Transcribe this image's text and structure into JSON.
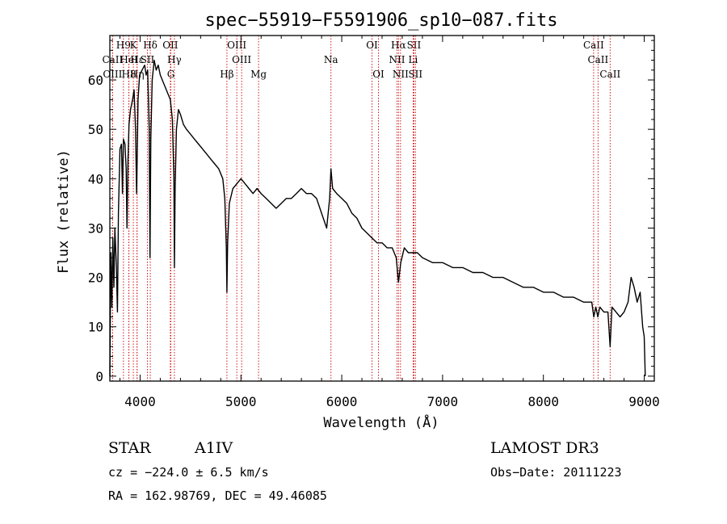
{
  "chart_data": {
    "type": "line",
    "title": "spec−55919−F5591906_sp10−087.fits",
    "xlabel": "Wavelength (Å)",
    "ylabel": "Flux (relative)",
    "xlim": [
      3700,
      9100
    ],
    "ylim": [
      -1,
      69
    ],
    "x_ticks": [
      4000,
      5000,
      6000,
      7000,
      8000,
      9000
    ],
    "x_tick_labels": [
      "4000",
      "5000",
      "6000",
      "7000",
      "8000",
      "9000"
    ],
    "y_ticks": [
      0,
      10,
      20,
      30,
      40,
      50,
      60
    ],
    "y_tick_labels": [
      "0",
      "10",
      "20",
      "30",
      "40",
      "50",
      "60"
    ],
    "line_color": "#000000",
    "marker_color": "#cc0000",
    "series": [
      {
        "name": "flux",
        "points": [
          [
            3700,
            0
          ],
          [
            3710,
            25
          ],
          [
            3720,
            14
          ],
          [
            3730,
            28
          ],
          [
            3740,
            18
          ],
          [
            3750,
            30
          ],
          [
            3765,
            22
          ],
          [
            3775,
            13
          ],
          [
            3785,
            33
          ],
          [
            3800,
            46
          ],
          [
            3815,
            47
          ],
          [
            3825,
            37
          ],
          [
            3835,
            48
          ],
          [
            3850,
            47
          ],
          [
            3862,
            42
          ],
          [
            3870,
            30
          ],
          [
            3880,
            44
          ],
          [
            3890,
            51
          ],
          [
            3905,
            54
          ],
          [
            3925,
            56
          ],
          [
            3940,
            58
          ],
          [
            3955,
            50
          ],
          [
            3965,
            37
          ],
          [
            3972,
            45
          ],
          [
            3980,
            56
          ],
          [
            3995,
            61
          ],
          [
            4020,
            62
          ],
          [
            4045,
            63
          ],
          [
            4060,
            61
          ],
          [
            4075,
            62
          ],
          [
            4090,
            50
          ],
          [
            4098,
            24
          ],
          [
            4106,
            48
          ],
          [
            4120,
            60
          ],
          [
            4140,
            64
          ],
          [
            4160,
            62
          ],
          [
            4180,
            63
          ],
          [
            4200,
            61
          ],
          [
            4220,
            60
          ],
          [
            4240,
            59
          ],
          [
            4260,
            58
          ],
          [
            4280,
            57
          ],
          [
            4300,
            56
          ],
          [
            4320,
            52
          ],
          [
            4335,
            40
          ],
          [
            4340,
            22
          ],
          [
            4347,
            38
          ],
          [
            4360,
            50
          ],
          [
            4380,
            54
          ],
          [
            4400,
            53
          ],
          [
            4430,
            51
          ],
          [
            4460,
            50
          ],
          [
            4500,
            49
          ],
          [
            4540,
            48
          ],
          [
            4580,
            47
          ],
          [
            4620,
            46
          ],
          [
            4660,
            45
          ],
          [
            4700,
            44
          ],
          [
            4740,
            43
          ],
          [
            4780,
            42
          ],
          [
            4820,
            40
          ],
          [
            4840,
            36
          ],
          [
            4855,
            26
          ],
          [
            4861,
            17
          ],
          [
            4868,
            27
          ],
          [
            4885,
            35
          ],
          [
            4920,
            38
          ],
          [
            4960,
            39
          ],
          [
            5000,
            40
          ],
          [
            5040,
            39
          ],
          [
            5080,
            38
          ],
          [
            5120,
            37
          ],
          [
            5160,
            38
          ],
          [
            5200,
            37
          ],
          [
            5250,
            36
          ],
          [
            5300,
            35
          ],
          [
            5350,
            34
          ],
          [
            5400,
            35
          ],
          [
            5450,
            36
          ],
          [
            5500,
            36
          ],
          [
            5550,
            37
          ],
          [
            5600,
            38
          ],
          [
            5650,
            37
          ],
          [
            5700,
            37
          ],
          [
            5750,
            36
          ],
          [
            5800,
            33
          ],
          [
            5850,
            30
          ],
          [
            5880,
            36
          ],
          [
            5893,
            42
          ],
          [
            5910,
            38
          ],
          [
            5950,
            37
          ],
          [
            6000,
            36
          ],
          [
            6050,
            35
          ],
          [
            6100,
            33
          ],
          [
            6150,
            32
          ],
          [
            6200,
            30
          ],
          [
            6250,
            29
          ],
          [
            6300,
            28
          ],
          [
            6350,
            27
          ],
          [
            6400,
            27
          ],
          [
            6450,
            26
          ],
          [
            6500,
            26
          ],
          [
            6540,
            24
          ],
          [
            6563,
            19
          ],
          [
            6585,
            23
          ],
          [
            6620,
            26
          ],
          [
            6660,
            25
          ],
          [
            6700,
            25
          ],
          [
            6750,
            25
          ],
          [
            6800,
            24
          ],
          [
            6900,
            23
          ],
          [
            7000,
            23
          ],
          [
            7100,
            22
          ],
          [
            7200,
            22
          ],
          [
            7300,
            21
          ],
          [
            7400,
            21
          ],
          [
            7500,
            20
          ],
          [
            7600,
            20
          ],
          [
            7700,
            19
          ],
          [
            7800,
            18
          ],
          [
            7900,
            18
          ],
          [
            8000,
            17
          ],
          [
            8100,
            17
          ],
          [
            8200,
            16
          ],
          [
            8300,
            16
          ],
          [
            8400,
            15
          ],
          [
            8480,
            15
          ],
          [
            8500,
            12
          ],
          [
            8520,
            14
          ],
          [
            8540,
            12
          ],
          [
            8560,
            14
          ],
          [
            8600,
            13
          ],
          [
            8640,
            13
          ],
          [
            8662,
            6
          ],
          [
            8680,
            14
          ],
          [
            8720,
            13
          ],
          [
            8760,
            12
          ],
          [
            8800,
            13
          ],
          [
            8840,
            15
          ],
          [
            8870,
            20
          ],
          [
            8900,
            18
          ],
          [
            8930,
            15
          ],
          [
            8960,
            17
          ],
          [
            8985,
            10
          ],
          [
            9000,
            8
          ],
          [
            9010,
            0
          ]
        ]
      }
    ],
    "line_markers": [
      {
        "name": "K",
        "wavelength": 3933,
        "row": 0
      },
      {
        "name": "Hδ",
        "wavelength": 4101,
        "row": 0
      },
      {
        "name": "OII",
        "wavelength": 4300,
        "row": 0
      },
      {
        "name": "OIII",
        "wavelength": 4959,
        "row": 0
      },
      {
        "name": "OI",
        "wavelength": 6300,
        "row": 0
      },
      {
        "name": "Hα",
        "wavelength": 6563,
        "row": 0
      },
      {
        "name": "SII",
        "wavelength": 6716,
        "row": 0
      },
      {
        "name": "CaII",
        "wavelength": 8498,
        "row": 0
      },
      {
        "name": "Hγ",
        "wavelength": 4340,
        "row": 1
      },
      {
        "name": "OIII",
        "wavelength": 5007,
        "row": 1
      },
      {
        "name": "Na",
        "wavelength": 5893,
        "row": 1
      },
      {
        "name": "NII",
        "wavelength": 6548,
        "row": 1
      },
      {
        "name": "Li",
        "wavelength": 6708,
        "row": 1
      },
      {
        "name": "CaII",
        "wavelength": 8542,
        "row": 1
      },
      {
        "name": "G",
        "wavelength": 4305,
        "row": 2
      },
      {
        "name": "Hβ",
        "wavelength": 4861,
        "row": 2
      },
      {
        "name": "Mg",
        "wavelength": 5175,
        "row": 2
      },
      {
        "name": "OI",
        "wavelength": 6364,
        "row": 2
      },
      {
        "name": "NII",
        "wavelength": 6583,
        "row": 2
      },
      {
        "name": "SII",
        "wavelength": 6731,
        "row": 2
      },
      {
        "name": "CaII",
        "wavelength": 8662,
        "row": 2
      },
      {
        "name": "H9",
        "wavelength": 3835,
        "row": 0
      },
      {
        "name": "CaII",
        "wavelength": 3727,
        "row": 1
      },
      {
        "name": "HeI",
        "wavelength": 3889,
        "row": 1
      },
      {
        "name": "SII",
        "wavelength": 4072,
        "row": 1
      },
      {
        "name": "OIII",
        "wavelength": 3727,
        "row": 2
      },
      {
        "name": "Hη",
        "wavelength": 3970,
        "row": 2
      },
      {
        "name": "H8",
        "wavelength": 3889,
        "row": 2
      },
      {
        "name": "Hε",
        "wavelength": 3970,
        "row": 1
      }
    ]
  },
  "info": {
    "object_class": "STAR",
    "subclass": "A1IV",
    "survey": "LAMOST  DR3",
    "redshift": "cz = −224.0 ± 6.5 km/s",
    "obs_date": "Obs−Date: 20111223",
    "coords": "RA = 162.98769, DEC =  49.46085"
  }
}
